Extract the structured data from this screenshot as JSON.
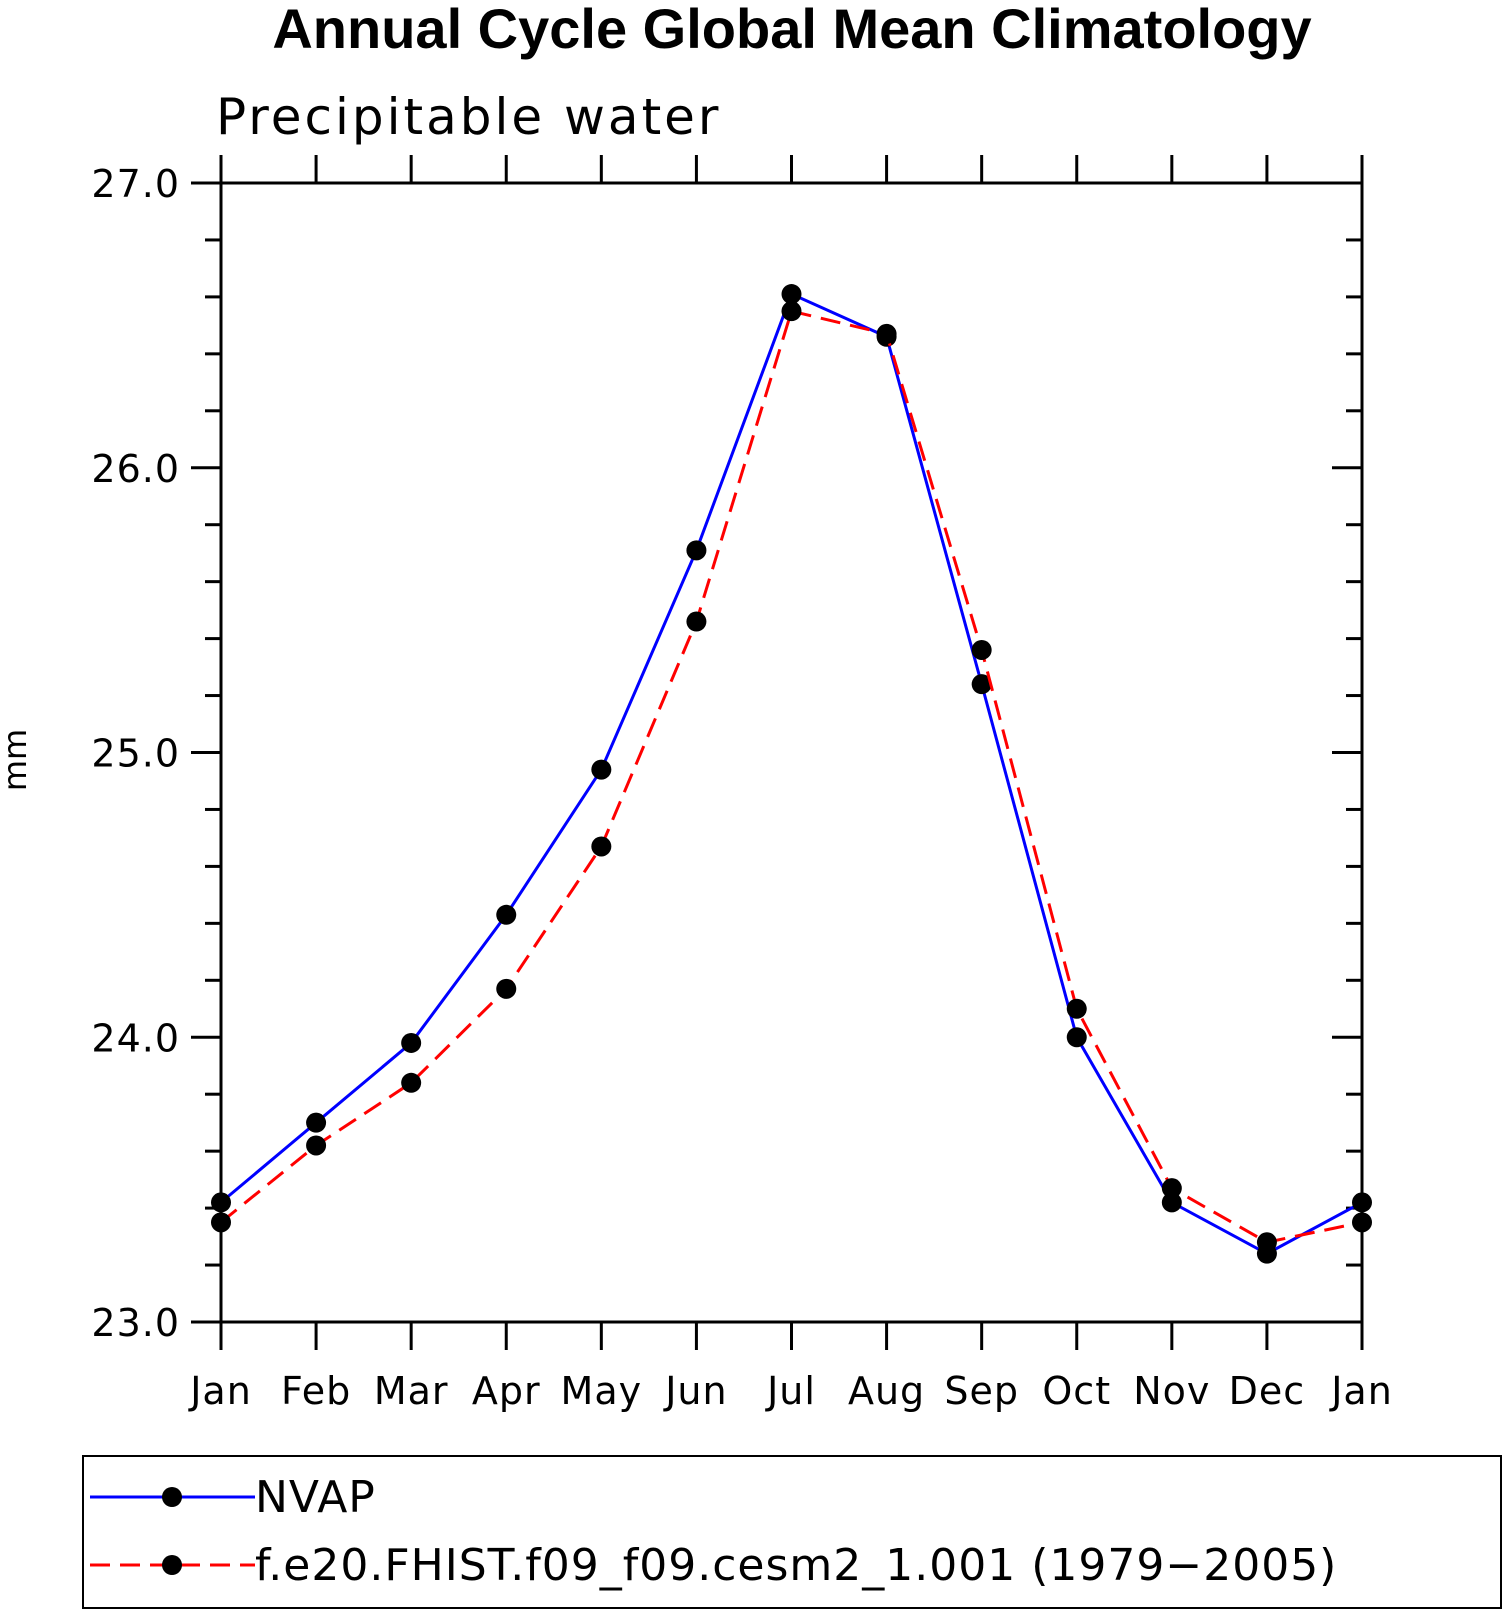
{
  "chart_data": {
    "type": "line",
    "title": "Annual Cycle Global Mean Climatology",
    "subtitle": "Precipitable water",
    "xlabel": "",
    "ylabel": "mm",
    "categories": [
      "Jan",
      "Feb",
      "Mar",
      "Apr",
      "May",
      "Jun",
      "Jul",
      "Aug",
      "Sep",
      "Oct",
      "Nov",
      "Dec",
      "Jan"
    ],
    "ylim": [
      23.0,
      27.0
    ],
    "yticks": [
      "23.0",
      "24.0",
      "25.0",
      "26.0",
      "27.0"
    ],
    "series": [
      {
        "name": "NVAP",
        "color": "#0000ff",
        "line_style": "solid",
        "marker": "filled-circle",
        "values": [
          23.42,
          23.7,
          23.98,
          24.43,
          24.94,
          25.71,
          26.61,
          26.46,
          25.24,
          24.0,
          23.42,
          23.24,
          23.42
        ]
      },
      {
        "name": "f.e20.FHIST.f09_f09.cesm2_1.001 (1979−2005)",
        "color": "#ff0000",
        "line_style": "dashed",
        "marker": "filled-circle",
        "values": [
          23.35,
          23.62,
          23.84,
          24.17,
          24.67,
          25.46,
          26.55,
          26.47,
          25.36,
          24.1,
          23.47,
          23.28,
          23.35
        ]
      }
    ],
    "grid": false,
    "legend_position": "bottom"
  }
}
